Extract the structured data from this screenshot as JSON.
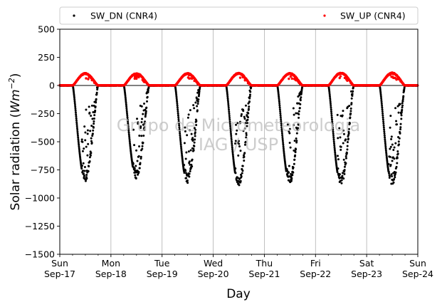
{
  "chart_data": {
    "type": "scatter",
    "xlabel": "Day",
    "ylabel": "Solar radiation (Wm−2)",
    "ylabel_parts": {
      "prefix": "Solar radiation (",
      "symbol": "Wm",
      "sup": "−2",
      "suffix": ")"
    },
    "ylim": [
      -1500,
      500
    ],
    "yticks": [
      500,
      250,
      0,
      -250,
      -500,
      -750,
      -1000,
      -1250,
      -1500
    ],
    "ytick_labels": [
      "500",
      "250",
      "0",
      "−250",
      "−500",
      "−750",
      "−1000",
      "−1250",
      "−1500"
    ],
    "xlim": [
      "2017-09-17",
      "2017-09-24"
    ],
    "xticks": [
      {
        "date": "2017-09-17",
        "day": "Sun",
        "date_label": "Sep-17"
      },
      {
        "date": "2017-09-18",
        "day": "Mon",
        "date_label": "Sep-18"
      },
      {
        "date": "2017-09-19",
        "day": "Tue",
        "date_label": "Sep-19"
      },
      {
        "date": "2017-09-20",
        "day": "Wed",
        "date_label": "Sep-20"
      },
      {
        "date": "2017-09-21",
        "day": "Thu",
        "date_label": "Sep-21"
      },
      {
        "date": "2017-09-22",
        "day": "Fri",
        "date_label": "Sep-22"
      },
      {
        "date": "2017-09-23",
        "day": "Sat",
        "date_label": "Sep-23"
      },
      {
        "date": "2017-09-24",
        "day": "Sun",
        "date_label": "Sep-24"
      }
    ],
    "grid": "vertical",
    "legend_position": "top",
    "watermark": [
      "Grupo de Micrometeorologia",
      "IAG / USP"
    ],
    "series": [
      {
        "name": "SW_DN (CNR4)",
        "color": "#000000",
        "daily_peaks": [
          {
            "date": "2017-09-17",
            "peak": -850
          },
          {
            "date": "2017-09-18",
            "peak": -830
          },
          {
            "date": "2017-09-19",
            "peak": -875
          },
          {
            "date": "2017-09-20",
            "peak": -890
          },
          {
            "date": "2017-09-21",
            "peak": -875
          },
          {
            "date": "2017-09-22",
            "peak": -885
          },
          {
            "date": "2017-09-23",
            "peak": -880
          }
        ]
      },
      {
        "name": "SW_UP (CNR4)",
        "color": "#ff0000",
        "daily_peaks": [
          {
            "date": "2017-09-17",
            "peak": 110
          },
          {
            "date": "2017-09-18",
            "peak": 110
          },
          {
            "date": "2017-09-19",
            "peak": 110
          },
          {
            "date": "2017-09-20",
            "peak": 112
          },
          {
            "date": "2017-09-21",
            "peak": 110
          },
          {
            "date": "2017-09-22",
            "peak": 115
          },
          {
            "date": "2017-09-23",
            "peak": 115
          }
        ]
      }
    ]
  }
}
